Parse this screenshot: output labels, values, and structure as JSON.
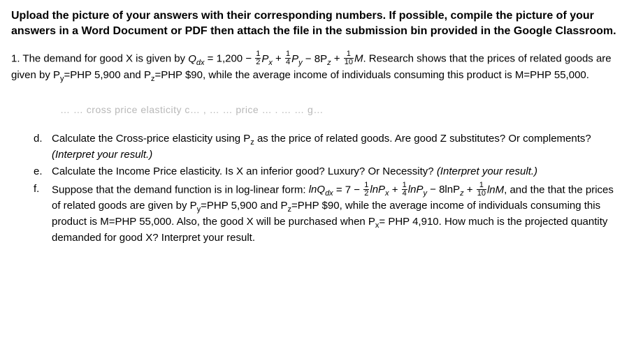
{
  "header_text": "Upload the picture of your answers with their corresponding numbers. If possible, compile the picture of your answers in a Word Document or PDF then attach the file in the submission bin provided in the Google Classroom.",
  "q1_prefix": "1. The demand for good X is given by ",
  "q1_eq_lhs": "Q",
  "q1_eq_sub": "dx",
  "q1_eq_eq": " = 1,200 − ",
  "q1_frac1_num": "1",
  "q1_frac1_den": "2",
  "q1_px": "P",
  "q1_px_sub": "x",
  "q1_plus1": " + ",
  "q1_frac2_num": "1",
  "q1_frac2_den": "4",
  "q1_py": "P",
  "q1_py_sub": "y",
  "q1_minus": " − 8P",
  "q1_pz_sub": "z",
  "q1_plus2": " + ",
  "q1_frac3_num": "1",
  "q1_frac3_den": "10",
  "q1_m": "M",
  "q1_suffix": ". Research shows that the prices of related goods are given by P",
  "q1_py2_sub": "y",
  "q1_py2_val": "=PHP 5,900 and P",
  "q1_pz2_sub": "z",
  "q1_pz2_val": "=PHP $90, while the average income of individuals consuming this product is M=PHP 55,000.",
  "faded_text": "… … cross price elasticity c… , … … price … . … … g…",
  "item_d_letter": "d.",
  "item_d_line1a": "Calculate the Cross-price elasticity using P",
  "item_d_line1_sub": "z",
  "item_d_line1b": " as the price of related goods. Are good Z substitutes? Or complements? ",
  "item_d_interp": "(Interpret your result.)",
  "item_e_letter": "e.",
  "item_e_text": "Calculate the Income Price elasticity. Is X an inferior good? Luxury? Or Necessity? ",
  "item_e_interp": "(Interpret your result.)",
  "item_f_letter": "f.",
  "item_f_prefix": "Suppose that the demand function is in log-linear form: ",
  "item_f_lnq": "lnQ",
  "item_f_lnq_sub": "dx",
  "item_f_eq": " = 7 − ",
  "item_f_frac1_num": "1",
  "item_f_frac1_den": "2",
  "item_f_lnpx": "lnP",
  "item_f_lnpx_sub": "x",
  "item_f_plus1": " + ",
  "item_f_frac2_num": "1",
  "item_f_frac2_den": "4",
  "item_f_lnpy": "lnP",
  "item_f_lnpy_sub": "y",
  "item_f_minus": " − 8lnP",
  "item_f_lnpz_sub": "z",
  "item_f_plus2": " + ",
  "item_f_frac3_num": "1",
  "item_f_frac3_den": "10",
  "item_f_lnm": "lnM",
  "item_f_suffix": ", and the that the prices of related goods are given by P",
  "item_f_py_sub": "y",
  "item_f_py_val": "=PHP 5,900 and P",
  "item_f_pz_sub": "z",
  "item_f_pz_val": "=PHP $90, while the average income of individuals consuming this product is M=PHP 55,000. Also, the good X will be purchased when P",
  "item_f_px_sub": "x",
  "item_f_px_val": "= PHP 4,910. How much is the projected quantity demanded for good X? Interpret your result.",
  "colors": {
    "text": "#000000",
    "faded": "#b8b8b8",
    "background": "#ffffff"
  },
  "fontsize_body": 15,
  "fontsize_header": 16
}
